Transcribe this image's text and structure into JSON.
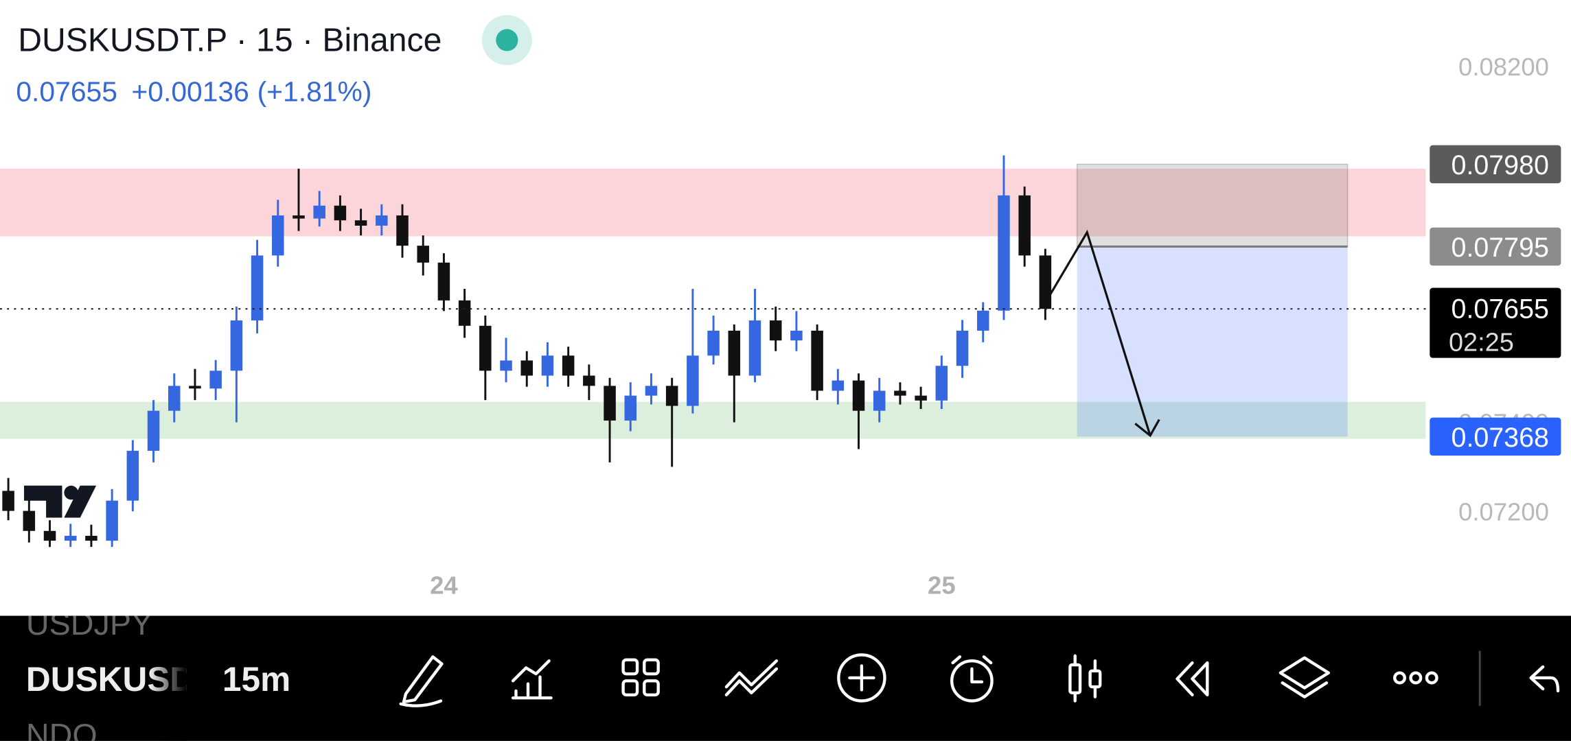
{
  "header": {
    "symbol": "DUSKUSDT.P · 15 · Binance",
    "last": "0.07655",
    "change": "+0.00136",
    "change_pct": "(+1.81%)"
  },
  "chart_data": {
    "type": "candlestick",
    "categories": [
      null,
      null,
      null,
      null,
      null,
      null,
      null,
      null,
      null,
      null,
      null,
      null,
      null,
      null,
      null,
      null,
      null,
      null,
      null,
      null,
      null,
      "24",
      null,
      null,
      null,
      null,
      null,
      null,
      null,
      null,
      null,
      null,
      null,
      null,
      null,
      null,
      null,
      null,
      null,
      null,
      null,
      null,
      null,
      null,
      null,
      "25",
      null,
      null,
      null,
      null,
      null
    ],
    "open": [
      0.07246,
      0.07201,
      0.07156,
      0.07134,
      0.07145,
      0.07134,
      0.07224,
      0.07336,
      0.07426,
      0.07482,
      0.07476,
      0.07516,
      0.07629,
      0.07775,
      0.07865,
      0.07858,
      0.07887,
      0.07854,
      0.07842,
      0.07865,
      0.07797,
      0.07759,
      0.07674,
      0.07617,
      0.07516,
      0.07539,
      0.07505,
      0.0755,
      0.07505,
      0.07482,
      0.07404,
      0.0746,
      0.07482,
      0.07437,
      0.0755,
      0.07606,
      0.07505,
      0.07629,
      0.07584,
      0.07606,
      0.07471,
      0.07494,
      0.07426,
      0.07471,
      0.0746,
      0.07449,
      0.07527,
      0.07606,
      0.07651,
      0.0791,
      0.07775
    ],
    "high": [
      0.07275,
      0.07225,
      0.0718,
      0.07172,
      0.0717,
      0.0725,
      0.0736,
      0.0745,
      0.0751,
      0.0752,
      0.0754,
      0.0766,
      0.0781,
      0.079,
      0.0797,
      0.0792,
      0.0791,
      0.0788,
      0.0789,
      0.0789,
      0.0782,
      0.0778,
      0.077,
      0.0764,
      0.0759,
      0.0756,
      0.0758,
      0.0757,
      0.0753,
      0.075,
      0.0749,
      0.0751,
      0.075,
      0.077,
      0.0764,
      0.0762,
      0.077,
      0.0766,
      0.0765,
      0.0762,
      0.0752,
      0.0751,
      0.075,
      0.0749,
      0.0748,
      0.0755,
      0.0763,
      0.0767,
      0.08,
      0.0793,
      0.0779
    ],
    "low": [
      0.0718,
      0.0713,
      0.0712,
      0.0712,
      0.0712,
      0.0712,
      0.072,
      0.0731,
      0.074,
      0.0745,
      0.0745,
      0.074,
      0.076,
      0.0775,
      0.0783,
      0.0784,
      0.0783,
      0.0782,
      0.0782,
      0.0777,
      0.0773,
      0.0765,
      0.0759,
      0.0745,
      0.0749,
      0.0748,
      0.0748,
      0.0748,
      0.0745,
      0.0731,
      0.0738,
      0.0744,
      0.073,
      0.0742,
      0.0753,
      0.074,
      0.0749,
      0.0756,
      0.0756,
      0.0745,
      0.0744,
      0.0734,
      0.074,
      0.0744,
      0.0743,
      0.0743,
      0.075,
      0.0758,
      0.0763,
      0.0775,
      0.0763
    ],
    "close": [
      0.07201,
      0.07156,
      0.07134,
      0.07145,
      0.07134,
      0.07224,
      0.07336,
      0.07426,
      0.07482,
      0.07476,
      0.07516,
      0.07629,
      0.07775,
      0.07865,
      0.07858,
      0.07887,
      0.07854,
      0.07842,
      0.07865,
      0.07797,
      0.07759,
      0.07674,
      0.07617,
      0.07516,
      0.07539,
      0.07505,
      0.0755,
      0.07505,
      0.07482,
      0.07404,
      0.0746,
      0.07482,
      0.07437,
      0.0755,
      0.07606,
      0.07505,
      0.07629,
      0.07584,
      0.07606,
      0.07471,
      0.07494,
      0.07426,
      0.07471,
      0.0746,
      0.07449,
      0.07527,
      0.07606,
      0.07651,
      0.0791,
      0.07775,
      0.07655
    ],
    "up_color": "#3568e0",
    "down_color": "#111111",
    "ylim": [
      0.07089,
      0.08349
    ],
    "yticks": [
      {
        "value": 0.072,
        "label": "0.07200"
      },
      {
        "value": 0.074,
        "label": "0.07400"
      },
      {
        "value": 0.082,
        "label": "0.08200"
      }
    ],
    "zones": [
      {
        "color": "#fbd5d9",
        "from": 0.07818,
        "to": 0.0797
      },
      {
        "color": "#dcefdc",
        "from": 0.07363,
        "to": 0.07446
      }
    ],
    "position": {
      "stop": {
        "value": 0.0798,
        "label": "0.07980"
      },
      "entry": 0.07795,
      "target": 0.07368
    },
    "last_price": {
      "value": 0.07655,
      "countdown": "02:25"
    }
  },
  "toolbar": {
    "symbols": [
      "USDJPY",
      "DUSKUSDT.P",
      "NDQ"
    ],
    "interval": "15m"
  }
}
